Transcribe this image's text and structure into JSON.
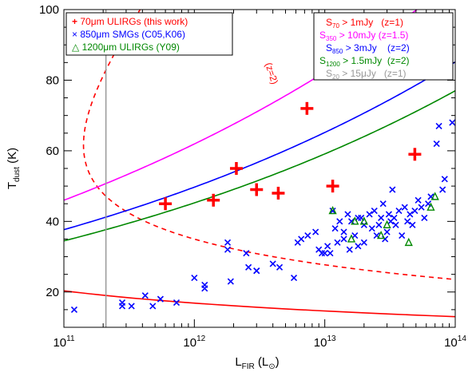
{
  "chart_data": {
    "type": "scatter",
    "x_axis": {
      "label_main": "L",
      "label_sub": "FIR",
      "label_unit_prefix": " (L",
      "label_unit_symbol": "⊙",
      "label_unit_suffix": ")",
      "scale": "log",
      "xlim": [
        100000000000.0,
        100000000000000.0
      ],
      "major_ticks": [
        {
          "value": 100000000000.0,
          "base": "10",
          "exp": "11"
        },
        {
          "value": 1000000000000.0,
          "base": "10",
          "exp": "12"
        },
        {
          "value": 10000000000000.0,
          "base": "10",
          "exp": "13"
        },
        {
          "value": 100000000000000.0,
          "base": "10",
          "exp": "14"
        }
      ]
    },
    "y_axis": {
      "label_main": "T",
      "label_sub": "dust",
      "label_unit": " (K)",
      "scale": "linear",
      "ylim": [
        10,
        100
      ],
      "major_ticks": [
        20,
        40,
        60,
        80,
        100
      ],
      "minor_step": 5
    },
    "vertical_line": {
      "x": 210000000000.0,
      "color": "#999999"
    },
    "series": [
      {
        "name": "70μm ULIRGs (this work)",
        "marker": "plus",
        "color": "#ff0000",
        "points": [
          [
            600000000000.0,
            45
          ],
          [
            1400000000000.0,
            46
          ],
          [
            2100000000000.0,
            55
          ],
          [
            3000000000000.0,
            49
          ],
          [
            4400000000000.0,
            48
          ],
          [
            7300000000000.0,
            72
          ],
          [
            11500000000000.0,
            50
          ],
          [
            49000000000000.0,
            59
          ]
        ]
      },
      {
        "name": "850μm SMGs (C05,K06)",
        "marker": "x",
        "color": "#0000ff",
        "points": [
          [
            120000000000.0,
            15
          ],
          [
            280000000000.0,
            17
          ],
          [
            280000000000.0,
            16
          ],
          [
            330000000000.0,
            16
          ],
          [
            420000000000.0,
            19
          ],
          [
            480000000000.0,
            16
          ],
          [
            550000000000.0,
            18
          ],
          [
            730000000000.0,
            17
          ],
          [
            1000000000000.0,
            24
          ],
          [
            1200000000000.0,
            21
          ],
          [
            1200000000000.0,
            22
          ],
          [
            1800000000000.0,
            34
          ],
          [
            1800000000000.0,
            32
          ],
          [
            1900000000000.0,
            23
          ],
          [
            2500000000000.0,
            31
          ],
          [
            2600000000000.0,
            27
          ],
          [
            3000000000000.0,
            26
          ],
          [
            3000000000000.0,
            26
          ],
          [
            4000000000000.0,
            28
          ],
          [
            4500000000000.0,
            27
          ],
          [
            5800000000000.0,
            24
          ],
          [
            6200000000000.0,
            34
          ],
          [
            6600000000000.0,
            35
          ],
          [
            7400000000000.0,
            36
          ],
          [
            8500000000000.0,
            37
          ],
          [
            9000000000000.0,
            32
          ],
          [
            9500000000000.0,
            31
          ],
          [
            10000000000000.0,
            31
          ],
          [
            10500000000000.0,
            33
          ],
          [
            11000000000000.0,
            31
          ],
          [
            11500000000000.0,
            43
          ],
          [
            12000000000000.0,
            38
          ],
          [
            12500000000000.0,
            34
          ],
          [
            13000000000000.0,
            40
          ],
          [
            14000000000000.0,
            37
          ],
          [
            14000000000000.0,
            35
          ],
          [
            15000000000000.0,
            42
          ],
          [
            15500000000000.0,
            32
          ],
          [
            16000000000000.0,
            40
          ],
          [
            17000000000000.0,
            36
          ],
          [
            18000000000000.0,
            33
          ],
          [
            18000000000000.0,
            41
          ],
          [
            19000000000000.0,
            41
          ],
          [
            20000000000000.0,
            39
          ],
          [
            20000000000000.0,
            34
          ],
          [
            22000000000000.0,
            42
          ],
          [
            23000000000000.0,
            38
          ],
          [
            24000000000000.0,
            43
          ],
          [
            25000000000000.0,
            36
          ],
          [
            26000000000000.0,
            39
          ],
          [
            27000000000000.0,
            41
          ],
          [
            28000000000000.0,
            45
          ],
          [
            29000000000000.0,
            35
          ],
          [
            30000000000000.0,
            37
          ],
          [
            31000000000000.0,
            42
          ],
          [
            32000000000000.0,
            40
          ],
          [
            33000000000000.0,
            49
          ],
          [
            34000000000000.0,
            41
          ],
          [
            35000000000000.0,
            39
          ],
          [
            37000000000000.0,
            43
          ],
          [
            39000000000000.0,
            36
          ],
          [
            41000000000000.0,
            44
          ],
          [
            43000000000000.0,
            40
          ],
          [
            45000000000000.0,
            42
          ],
          [
            47000000000000.0,
            39
          ],
          [
            49000000000000.0,
            43
          ],
          [
            52000000000000.0,
            46
          ],
          [
            55000000000000.0,
            44
          ],
          [
            58000000000000.0,
            41
          ],
          [
            62000000000000.0,
            45
          ],
          [
            65000000000000.0,
            47
          ],
          [
            72000000000000.0,
            62
          ],
          [
            75000000000000.0,
            67
          ],
          [
            80000000000000.0,
            49
          ],
          [
            83000000000000.0,
            52
          ],
          [
            95000000000000.0,
            68
          ]
        ]
      },
      {
        "name": "1200μm ULIRGs (Y09)",
        "marker": "triangle",
        "color": "#008800",
        "points": [
          [
            11500000000000.0,
            43
          ],
          [
            16000000000000.0,
            35
          ],
          [
            17000000000000.0,
            40
          ],
          [
            20000000000000.0,
            40
          ],
          [
            27000000000000.0,
            36
          ],
          [
            30000000000000.0,
            39
          ],
          [
            44000000000000.0,
            34
          ],
          [
            65000000000000.0,
            44
          ],
          [
            70000000000000.0,
            47
          ]
        ]
      }
    ],
    "curves": [
      {
        "id": "s70",
        "color": "#ff0000",
        "dash": false
      },
      {
        "id": "s70_z2",
        "color": "#ff0000",
        "dash": true
      },
      {
        "id": "s350",
        "color": "#ff00ff",
        "dash": false
      },
      {
        "id": "s850",
        "color": "#0000ff",
        "dash": false
      },
      {
        "id": "s1200",
        "color": "#008800",
        "dash": false
      }
    ],
    "annotation": {
      "text": "(z=2)",
      "color": "#ff0000"
    },
    "legend_left": {
      "placement": "top-left",
      "entries": [
        {
          "symbol": "+",
          "text": " 70μm ULIRGs (this work)",
          "color": "#ff0000"
        },
        {
          "symbol": "×",
          "text": " 850μm SMGs (C05,K06)",
          "color": "#0000ff"
        },
        {
          "symbol": "△",
          "text": " 1200μm ULIRGs (Y09)",
          "color": "#008800"
        }
      ]
    },
    "legend_right": {
      "placement": "top-right",
      "entries": [
        {
          "main": "S",
          "sub": "70",
          "rest": " > 1mJy   (z=1)",
          "color": "#ff0000"
        },
        {
          "main": "S",
          "sub": "350",
          "rest": " > 10mJy (z=1.5)",
          "color": "#ff00ff"
        },
        {
          "main": "S",
          "sub": "850",
          "rest": " > 3mJy    (z=2)",
          "color": "#0000ff"
        },
        {
          "main": "S",
          "sub": "1200",
          "rest": " > 1.5mJy  (z=2)",
          "color": "#008800"
        },
        {
          "main": "S",
          "sub": "20",
          "rest": " > 15μJy   (z=1)",
          "color": "#999999"
        }
      ]
    }
  }
}
